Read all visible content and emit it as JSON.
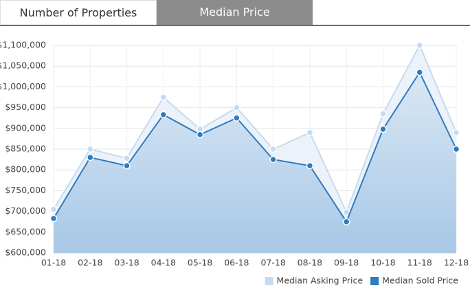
{
  "tabs": [
    "Number of Properties",
    "Median Price"
  ],
  "chart_data": {
    "type": "area-line",
    "categories": [
      "01-18",
      "02-18",
      "03-18",
      "04-18",
      "05-18",
      "06-18",
      "07-18",
      "08-18",
      "09-18",
      "10-18",
      "11-18",
      "12-18"
    ],
    "series": [
      {
        "name": "Median Asking Price",
        "color": "#c6dbef",
        "values": [
          705000,
          850000,
          828000,
          975000,
          898000,
          950000,
          850000,
          890000,
          698000,
          935000,
          1100000,
          890000
        ]
      },
      {
        "name": "Median Sold Price",
        "color": "#2e7bbd",
        "values": [
          683000,
          830000,
          810000,
          933000,
          885000,
          925000,
          825000,
          810000,
          675000,
          898000,
          1035000,
          850000
        ]
      }
    ],
    "ylim": [
      600000,
      1100000
    ],
    "yticks": [
      {
        "value": 600000,
        "label": "$600,000"
      },
      {
        "value": 650000,
        "label": "$650,000"
      },
      {
        "value": 700000,
        "label": "$700,000"
      },
      {
        "value": 750000,
        "label": "$750,000"
      },
      {
        "value": 800000,
        "label": "$800,000"
      },
      {
        "value": 850000,
        "label": "$850,000"
      },
      {
        "value": 900000,
        "label": "$900,000"
      },
      {
        "value": 950000,
        "label": "$950,000"
      },
      {
        "value": 1000000,
        "label": "$1,000,000"
      },
      {
        "value": 1050000,
        "label": "$1,050,000"
      },
      {
        "value": 1100000,
        "label": "$1,100,000"
      }
    ],
    "grid": true,
    "legend": "bottom-right"
  }
}
